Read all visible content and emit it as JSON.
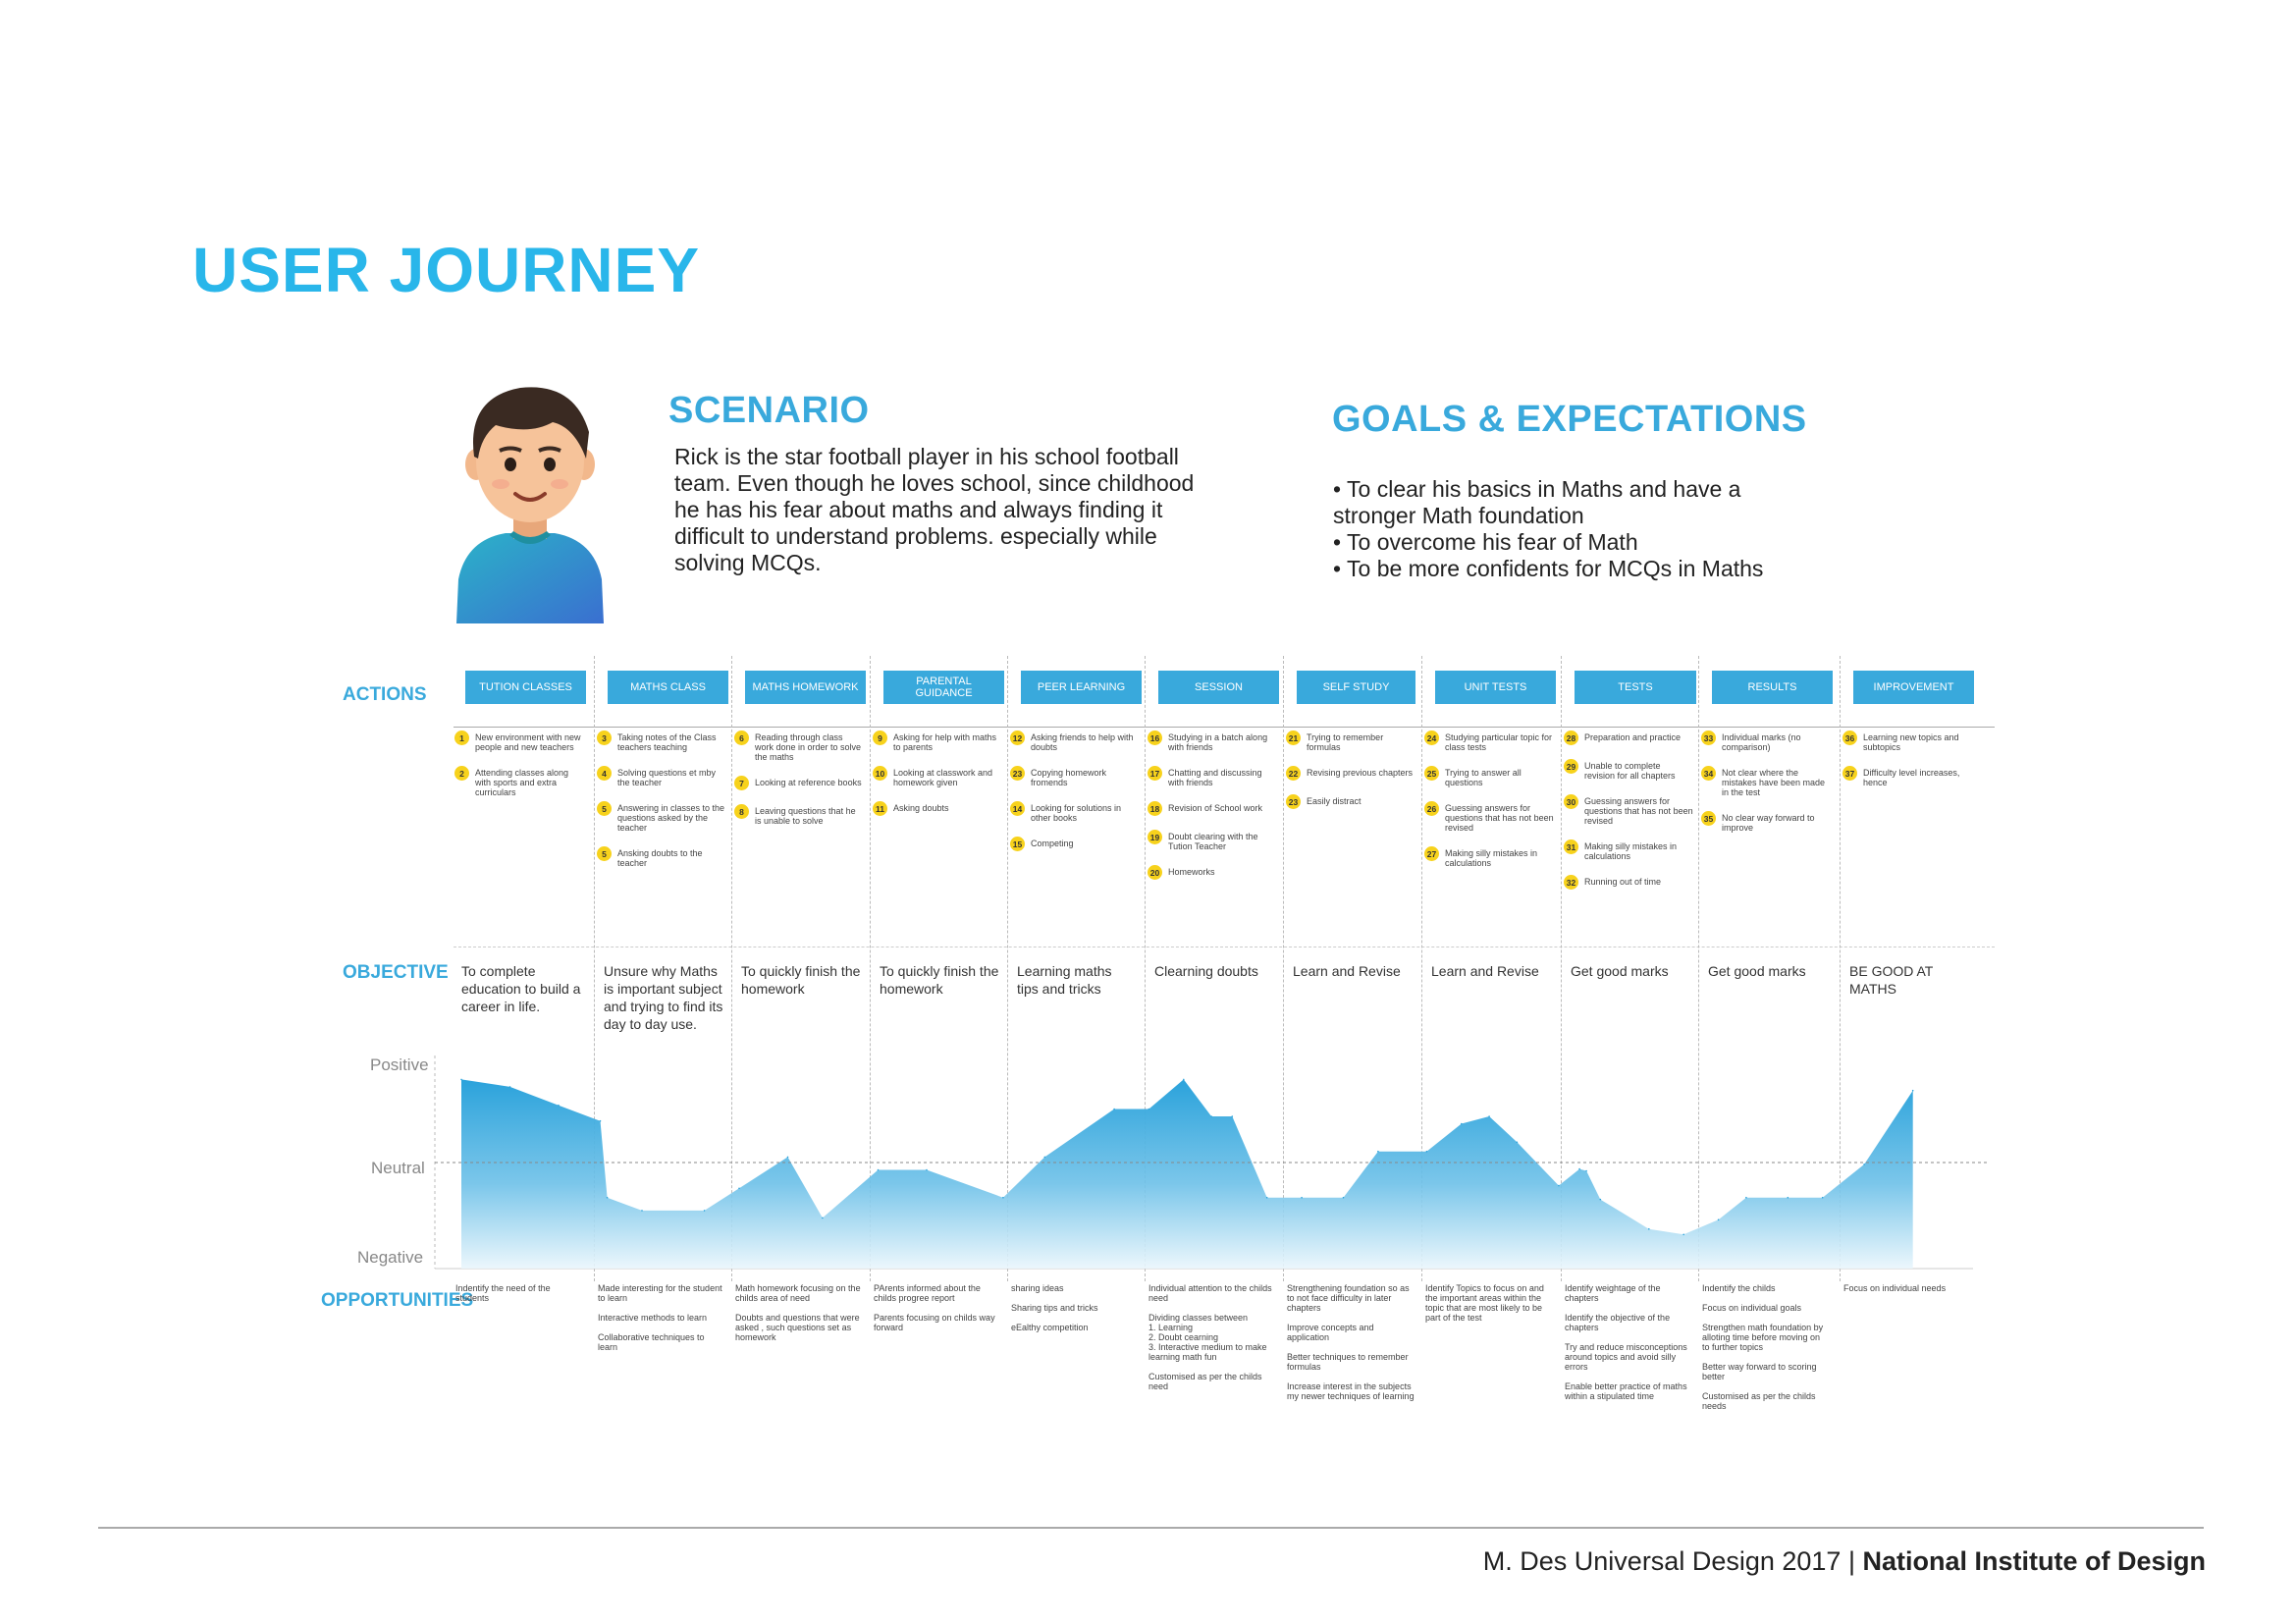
{
  "page": {
    "title": "USER JOURNEY",
    "footer_left": "M. Des Universal Design 2017 |",
    "footer_right": "National Institute of Design"
  },
  "scenario": {
    "title": "SCENARIO",
    "text": "Rick is the star football player in his school football team. Even though he loves school, since childhood he has his fear about maths and always finding it difficult to understand problems. especially while solving MCQs."
  },
  "goals": {
    "title": "GOALS & EXPECTATIONS",
    "items": [
      "To clear his basics in Maths and have a stronger Math foundation",
      "To overcome his fear of Math",
      "To be more confidents for MCQs in Maths"
    ]
  },
  "labels": {
    "actions": "ACTIONS",
    "objective": "OBJECTIVE",
    "opportunities": "OPPORTUNITIES",
    "positive": "Positive",
    "neutral": "Neutral",
    "negative": "Negative"
  },
  "colors": {
    "accent": "#39a9dc",
    "title": "#29b6ea",
    "badge": "#f7d21c"
  },
  "columns": [
    {
      "header": "TUTION CLASSES",
      "actions": [
        {
          "n": "1",
          "text": "New environment with new people and new teachers"
        },
        {
          "n": "2",
          "text": "Attending classes along with sports and extra curriculars"
        }
      ],
      "objective": "To complete education to build a career in life.",
      "opportunities": [
        "Indentify the need of the students"
      ]
    },
    {
      "header": "MATHS CLASS",
      "actions": [
        {
          "n": "3",
          "text": "Taking notes of the Class teachers teaching"
        },
        {
          "n": "4",
          "text": "Solving questions et mby the teacher"
        },
        {
          "n": "5",
          "text": "Answering in classes to the questions asked by the teacher"
        },
        {
          "n": "5",
          "text": "Ansking doubts to the teacher"
        }
      ],
      "objective": "Unsure why Maths is important subject and trying to find its day to day use.",
      "opportunities": [
        "Made interesting for the student to learn",
        "Interactive methods to learn",
        "Collaborative techniques to learn"
      ]
    },
    {
      "header": "MATHS HOMEWORK",
      "actions": [
        {
          "n": "6",
          "text": "Reading through class work done in order to solve the maths"
        },
        {
          "n": "7",
          "text": "Looking at reference books"
        },
        {
          "n": "8",
          "text": "Leaving questions that he is unable to solve"
        }
      ],
      "objective": "To quickly finish the homework",
      "opportunities": [
        "Math homework focusing on the childs area of need",
        "Doubts and questions that were asked , such questions set as homework"
      ]
    },
    {
      "header": "PARENTAL GUIDANCE",
      "actions": [
        {
          "n": "9",
          "text": "Asking for help with maths to parents"
        },
        {
          "n": "10",
          "text": "Looking at classwork and homework given"
        },
        {
          "n": "11",
          "text": "Asking doubts"
        }
      ],
      "objective": "To quickly finish the homework",
      "opportunities": [
        "PArents informed about the childs progree report",
        "Parents focusing on childs way forward"
      ]
    },
    {
      "header": "PEER LEARNING",
      "actions": [
        {
          "n": "12",
          "text": "Asking friends to help with doubts"
        },
        {
          "n": "23",
          "text": "Copying homework fromends"
        },
        {
          "n": "14",
          "text": "Looking for solutions in other books"
        },
        {
          "n": "15",
          "text": "Competing"
        }
      ],
      "objective": "Learning maths tips and tricks",
      "opportunities": [
        "sharing ideas",
        "Sharing tips and tricks",
        "eEalthy competition"
      ]
    },
    {
      "header": "SESSION",
      "actions": [
        {
          "n": "16",
          "text": "Studying in a batch along with friends"
        },
        {
          "n": "17",
          "text": "Chatting and discussing with friends"
        },
        {
          "n": "18",
          "text": "Revision of School work"
        },
        {
          "n": "19",
          "text": "Doubt clearing with the Tution Teacher"
        },
        {
          "n": "20",
          "text": "Homeworks"
        }
      ],
      "objective": "Clearning doubts",
      "opportunities": [
        "Individual attention to the childs need",
        "Dividing classes between\n1. Learning\n2. Doubt cearning\n3. Interactive medium to make learning math fun",
        "Customised as per the childs need"
      ]
    },
    {
      "header": "SELF STUDY",
      "actions": [
        {
          "n": "21",
          "text": "Trying to remember formulas"
        },
        {
          "n": "22",
          "text": "Revising previous chapters"
        },
        {
          "n": "23",
          "text": "Easily distract"
        }
      ],
      "objective": "Learn and Revise",
      "opportunities": [
        "Strengthening foundation so as to not face difficulty in later chapters",
        "Improve concepts and application",
        "Better techniques to remember formulas",
        "Increase interest in the subjects my newer techniques of learning"
      ]
    },
    {
      "header": "UNIT TESTS",
      "actions": [
        {
          "n": "24",
          "text": "Studying particular topic for class tests"
        },
        {
          "n": "25",
          "text": "Trying to answer all questions"
        },
        {
          "n": "26",
          "text": "Guessing answers for questions that has not been revised"
        },
        {
          "n": "27",
          "text": "Making silly mistakes in calculations"
        }
      ],
      "objective": "Learn and Revise",
      "opportunities": [
        "Identify Topics to focus on and the important areas within the topic that are most likely to be part of the test"
      ]
    },
    {
      "header": "TESTS",
      "actions": [
        {
          "n": "28",
          "text": "Preparation and practice"
        },
        {
          "n": "29",
          "text": "Unable to complete revision for all chapters"
        },
        {
          "n": "30",
          "text": "Guessing answers for questions that has not been revised"
        },
        {
          "n": "31",
          "text": "Making silly mistakes in calculations"
        },
        {
          "n": "32",
          "text": "Running out of time"
        }
      ],
      "objective": "Get good marks",
      "opportunities": [
        "Identify weightage of the chapters",
        "Identify the objective of the chapters",
        "Try and reduce misconceptions around topics and avoid silly errors",
        "Enable better practice of maths within a stipulated time"
      ]
    },
    {
      "header": "RESULTS",
      "actions": [
        {
          "n": "33",
          "text": "Individual marks (no comparison)"
        },
        {
          "n": "34",
          "text": "Not clear where the mistakes have been made in the test"
        },
        {
          "n": "35",
          "text": "No clear way forward to improve"
        }
      ],
      "objective": "Get good marks",
      "opportunities": [
        "Indentify the childs",
        "Focus on individual goals",
        "Strengthen math foundation by alloting time before moving on to further topics",
        "Better way forward to scoring better",
        "Customised as per the childs needs"
      ]
    },
    {
      "header": "IMPROVEMENT",
      "actions": [
        {
          "n": "36",
          "text": "Learning new topics and subtopics"
        },
        {
          "n": "37",
          "text": "Difficulty level increases, hence"
        }
      ],
      "objective": "BE GOOD AT MATHS",
      "opportunities": [
        "Focus on individual needs"
      ]
    }
  ],
  "chart_data": {
    "type": "area",
    "ylabels": [
      "Positive",
      "Neutral",
      "Negative"
    ],
    "ylim": [
      -1,
      1
    ],
    "x": [
      0,
      0.35,
      0.7,
      1.0,
      1.05,
      1.3,
      1.75,
      2.0,
      2.35,
      2.6,
      3.0,
      3.35,
      3.9,
      4.2,
      4.7,
      4.95,
      5.2,
      5.4,
      5.55,
      5.8,
      6.05,
      6.35,
      6.6,
      6.95,
      7.2,
      7.4,
      7.6,
      7.9,
      8.05,
      8.1,
      8.2,
      8.55,
      8.8,
      9.05,
      9.25,
      9.55,
      9.8,
      10.1,
      10.45
    ],
    "values": [
      0.9,
      0.82,
      0.62,
      0.45,
      -0.38,
      -0.52,
      -0.52,
      -0.28,
      0.06,
      -0.6,
      -0.08,
      -0.08,
      -0.38,
      0.06,
      0.58,
      0.58,
      0.9,
      0.5,
      0.5,
      -0.38,
      -0.38,
      -0.38,
      0.12,
      0.12,
      0.42,
      0.5,
      0.22,
      -0.25,
      -0.07,
      -0.09,
      -0.4,
      -0.72,
      -0.78,
      -0.62,
      -0.38,
      -0.38,
      -0.38,
      -0.02,
      0.78
    ]
  }
}
